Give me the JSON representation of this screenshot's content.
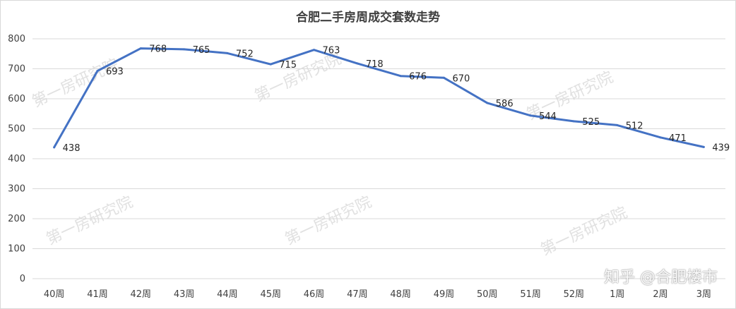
{
  "chart_data": {
    "type": "line",
    "title": "合肥二手房周成交套数走势",
    "categories": [
      "40周",
      "41周",
      "42周",
      "43周",
      "44周",
      "45周",
      "46周",
      "47周",
      "48周",
      "49周",
      "50周",
      "51周",
      "52周",
      "1周",
      "2周",
      "3周"
    ],
    "series": [
      {
        "values": [
          438,
          693,
          768,
          765,
          752,
          715,
          763,
          718,
          676,
          670,
          586,
          544,
          525,
          512,
          471,
          439
        ]
      }
    ],
    "ylim": [
      0,
      800
    ],
    "yticks": [
      0,
      100,
      200,
      300,
      400,
      500,
      600,
      700,
      800
    ],
    "grid": true,
    "legend": "none",
    "line_color": "#4472c4"
  },
  "watermark": "第一房研究院",
  "brand": "知乎 @合肥楼市"
}
